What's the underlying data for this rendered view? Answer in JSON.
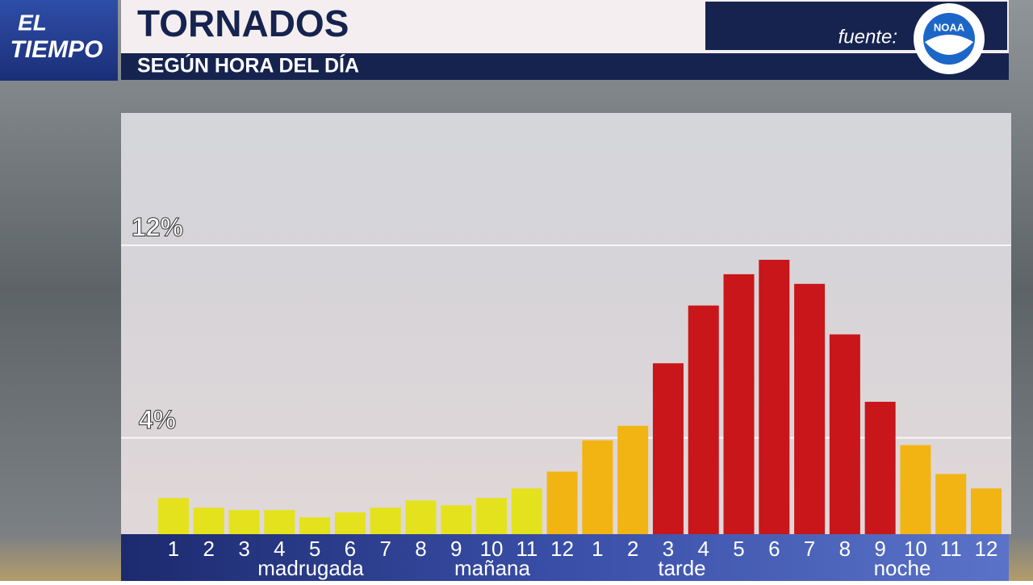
{
  "brand": {
    "line1": "EL",
    "line2": "TIEMPO"
  },
  "source": {
    "label": "fuente:",
    "logo": "NOAA"
  },
  "chart_data": {
    "type": "bar",
    "title": "TORNADOS",
    "subtitle": "SEGÚN HORA DEL DÍA",
    "categories": [
      "1",
      "2",
      "3",
      "4",
      "5",
      "6",
      "7",
      "8",
      "9",
      "10",
      "11",
      "12",
      "1",
      "2",
      "3",
      "4",
      "5",
      "6",
      "7",
      "8",
      "9",
      "10",
      "11",
      "12"
    ],
    "periods": [
      "madrugada",
      "mañana",
      "tarde",
      "noche"
    ],
    "values": [
      1.5,
      1.1,
      1.0,
      1.0,
      0.7,
      0.9,
      1.1,
      1.4,
      1.2,
      1.5,
      1.9,
      2.6,
      3.9,
      4.5,
      7.1,
      9.5,
      10.8,
      11.4,
      10.4,
      8.3,
      5.5,
      3.7,
      2.5,
      1.9
    ],
    "colors": [
      "#e4e21c",
      "#e4e21c",
      "#e4e21c",
      "#e4e21c",
      "#e4e21c",
      "#e4e21c",
      "#e4e21c",
      "#e4e21c",
      "#e4e21c",
      "#e4e21c",
      "#e4e21c",
      "#f2b413",
      "#f2b413",
      "#f2b413",
      "#c8161a",
      "#c8161a",
      "#c8161a",
      "#c8161a",
      "#c8161a",
      "#c8161a",
      "#c8161a",
      "#f2b413",
      "#f2b413",
      "#f2b413"
    ],
    "ylim": [
      0,
      17.5
    ],
    "yticks": [
      {
        "value": 4,
        "label": "4%"
      },
      {
        "value": 12,
        "label": "12%"
      }
    ],
    "grid": true
  }
}
